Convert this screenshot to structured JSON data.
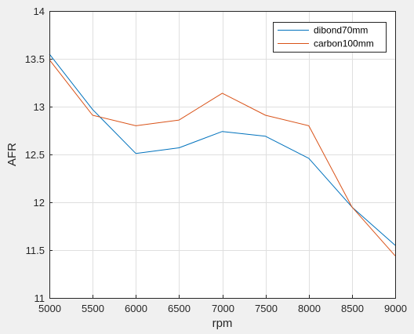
{
  "chart_data": {
    "type": "line",
    "title": "",
    "xlabel": "rpm",
    "ylabel": "AFR",
    "x": [
      5000,
      5500,
      6000,
      6500,
      7000,
      7500,
      8000,
      8500,
      9000
    ],
    "xlim": [
      5000,
      9000
    ],
    "ylim": [
      11,
      14
    ],
    "xticks": [
      5000,
      5500,
      6000,
      6500,
      7000,
      7500,
      8000,
      8500,
      9000
    ],
    "yticks": [
      11,
      11.5,
      12,
      12.5,
      13,
      13.5,
      14
    ],
    "xtick_labels": [
      "5000",
      "5500",
      "6000",
      "6500",
      "7000",
      "7500",
      "8000",
      "8500",
      "9000"
    ],
    "ytick_labels": [
      "11",
      "11.5",
      "12",
      "12.5",
      "13",
      "13.5",
      "14"
    ],
    "grid": true,
    "legend_position": "top-right",
    "series": [
      {
        "name": "dibond70mm",
        "color": "#0072bd",
        "values": [
          13.55,
          12.97,
          12.51,
          12.57,
          12.74,
          12.69,
          12.46,
          11.95,
          11.55
        ]
      },
      {
        "name": "carbon100mm",
        "color": "#d95319",
        "values": [
          13.49,
          12.91,
          12.8,
          12.86,
          13.14,
          12.91,
          12.8,
          11.95,
          11.44
        ]
      }
    ]
  }
}
